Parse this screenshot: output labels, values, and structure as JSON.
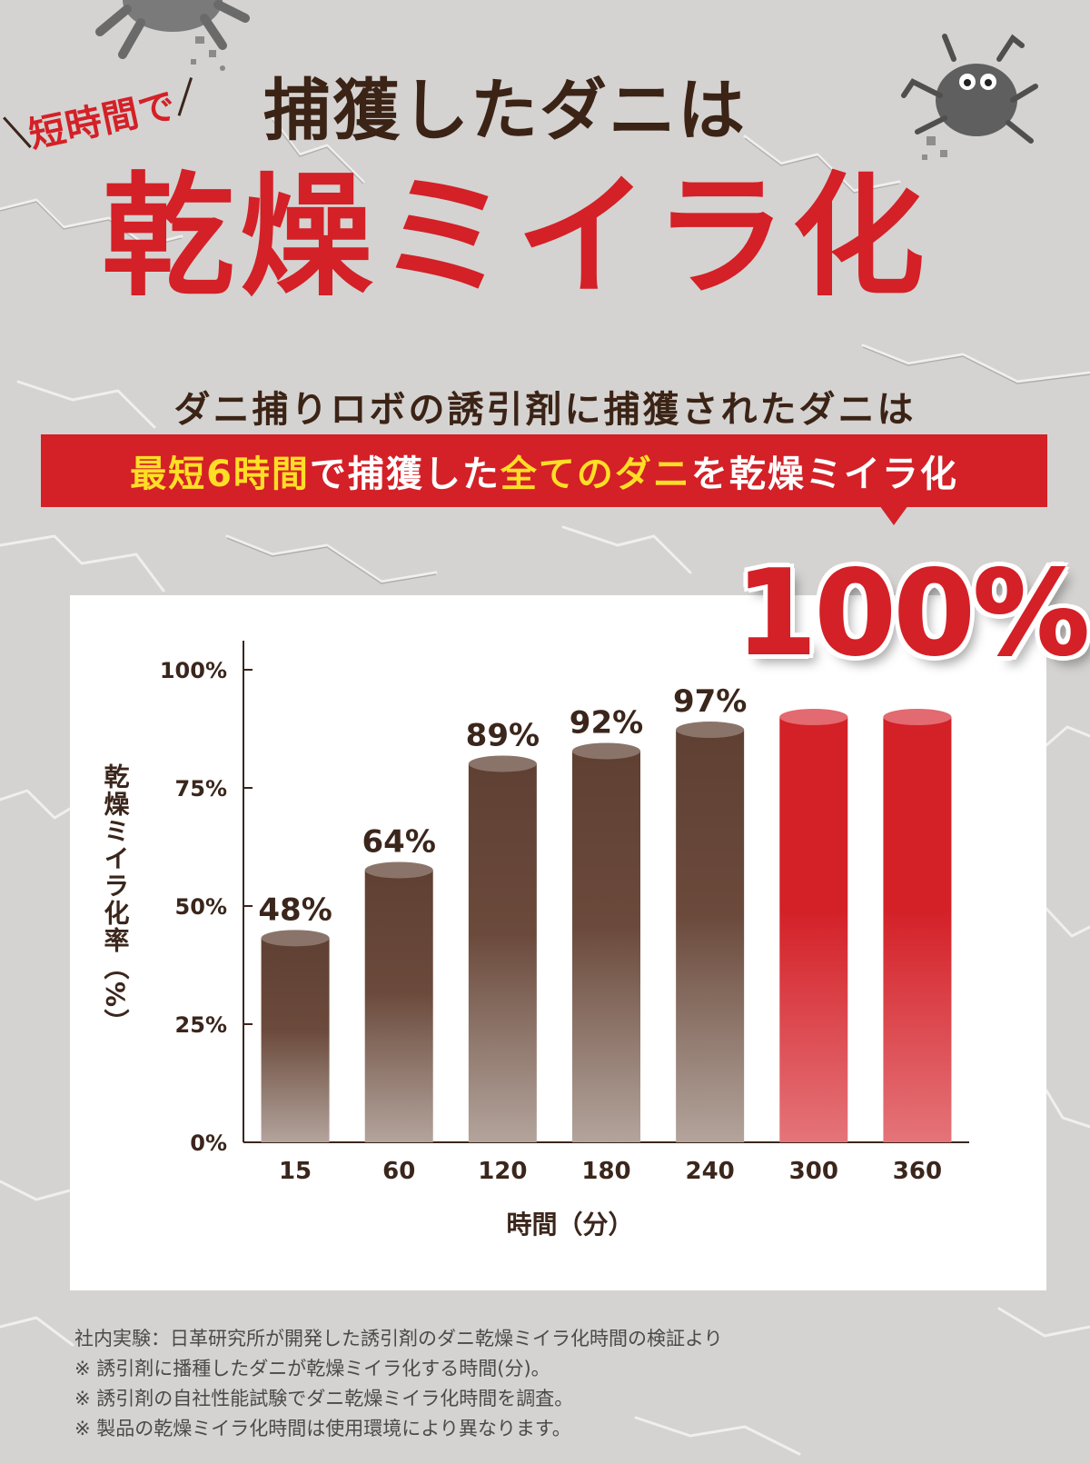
{
  "header": {
    "sub_heading": "短時間で",
    "title_line1": "捕獲したダニは",
    "title_line2": "乾燥ミイラ化"
  },
  "lead": "ダニ捕りロボの誘引剤に捕獲されたダニは",
  "banner": {
    "part1": "最短6時間",
    "part2": "で捕獲した",
    "part3": "全てのダニ",
    "part4": "を乾燥ミイラ化"
  },
  "highlight_value": "100%",
  "colors": {
    "accent_red": "#d42027",
    "brown": "#6b4a3c",
    "highlight_yellow": "#ffde26",
    "background": "#d4d3d1"
  },
  "chart_data": {
    "type": "bar",
    "categories": [
      "15",
      "60",
      "120",
      "180",
      "240",
      "300",
      "360"
    ],
    "values": [
      48,
      64,
      89,
      92,
      97,
      100,
      100
    ],
    "data_labels": [
      "48%",
      "64%",
      "89%",
      "92%",
      "97%",
      "",
      ""
    ],
    "highlight_categories": [
      "300",
      "360"
    ],
    "xlabel": "時間（分）",
    "ylabel": "乾燥ミイラ化率（%）",
    "yticks": [
      "0%",
      "25%",
      "50%",
      "75%",
      "100%"
    ],
    "ylim": [
      0,
      100
    ],
    "grid": false
  },
  "notes": [
    "社内実験：日革研究所が開発した誘引剤のダニ乾燥ミイラ化時間の検証より",
    "※ 誘引剤に播種したダニが乾燥ミイラ化する時間(分)。",
    "※ 誘引剤の自社性能試験でダニ乾燥ミイラ化時間を調査。",
    "※ 製品の乾燥ミイラ化時間は使用環境により異なります。"
  ]
}
